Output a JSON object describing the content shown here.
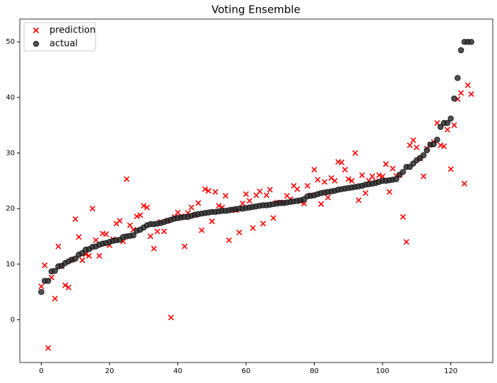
{
  "chart_data": {
    "type": "scatter",
    "title": "Voting Ensemble",
    "x": [
      0,
      1,
      2,
      3,
      4,
      5,
      6,
      7,
      8,
      9,
      10,
      11,
      12,
      13,
      14,
      15,
      16,
      17,
      18,
      19,
      20,
      21,
      22,
      23,
      24,
      25,
      26,
      27,
      28,
      29,
      30,
      31,
      32,
      33,
      34,
      35,
      36,
      37,
      38,
      39,
      40,
      41,
      42,
      43,
      44,
      45,
      46,
      47,
      48,
      49,
      50,
      51,
      52,
      53,
      54,
      55,
      56,
      57,
      58,
      59,
      60,
      61,
      62,
      63,
      64,
      65,
      66,
      67,
      68,
      69,
      70,
      71,
      72,
      73,
      74,
      75,
      76,
      77,
      78,
      79,
      80,
      81,
      82,
      83,
      84,
      85,
      86,
      87,
      88,
      89,
      90,
      91,
      92,
      93,
      94,
      95,
      96,
      97,
      98,
      99,
      100,
      101,
      102,
      103,
      104,
      105,
      106,
      107,
      108,
      109,
      110,
      111,
      112,
      113,
      114,
      115,
      116,
      117,
      118,
      119,
      120,
      121,
      122,
      123,
      124,
      125,
      126
    ],
    "series": [
      {
        "name": "prediction",
        "color": "#ff0000",
        "marker": "x",
        "values": [
          6.0,
          9.8,
          -5.1,
          7.6,
          3.8,
          13.2,
          9.7,
          6.2,
          5.8,
          10.8,
          18.1,
          14.9,
          10.7,
          11.8,
          11.5,
          20.0,
          14.3,
          11.5,
          15.5,
          15.4,
          13.4,
          14.5,
          17.3,
          17.8,
          14.1,
          25.3,
          17.0,
          16.2,
          18.6,
          18.8,
          20.5,
          20.2,
          15.0,
          12.8,
          15.9,
          17.6,
          15.9,
          17.8,
          0.4,
          18.5,
          19.3,
          18.6,
          13.2,
          19.2,
          20.2,
          18.8,
          21.0,
          16.1,
          23.5,
          23.2,
          17.7,
          23.0,
          20.5,
          20.2,
          22.3,
          14.3,
          19.8,
          19.7,
          15.7,
          20.9,
          22.6,
          21.4,
          16.5,
          22.4,
          23.1,
          17.3,
          22.4,
          23.4,
          18.3,
          21.1,
          21.1,
          21.1,
          22.3,
          21.7,
          24.1,
          23.5,
          21.3,
          20.9,
          24.1,
          22.4,
          27.0,
          25.2,
          20.8,
          24.8,
          22.0,
          25.5,
          25.0,
          28.4,
          28.3,
          27.0,
          25.3,
          25.0,
          30.0,
          21.5,
          26.0,
          22.8,
          25.0,
          25.8,
          24.9,
          26.0,
          25.8,
          28.0,
          23.0,
          27.2,
          25.9,
          26.0,
          18.5,
          14.0,
          31.4,
          32.3,
          31.0,
          29.0,
          25.8,
          30.8,
          31.5,
          32.0,
          35.4,
          31.4,
          31.2,
          34.2,
          27.1,
          35.0,
          39.7,
          40.8,
          24.5,
          42.2,
          40.6
        ]
      },
      {
        "name": "actual",
        "color": "#333333",
        "marker": "o",
        "values": [
          5,
          7,
          7,
          8.7,
          8.8,
          9.6,
          9.7,
          10.2,
          10.5,
          10.8,
          11,
          11.7,
          12,
          12.6,
          12.7,
          13.1,
          13.2,
          13.5,
          13.7,
          13.8,
          14,
          14.2,
          14.3,
          14.4,
          14.9,
          15,
          15.1,
          15.2,
          16,
          16.2,
          16.6,
          17,
          17.2,
          17.2,
          17.3,
          17.4,
          17.6,
          17.8,
          18,
          18.2,
          18.3,
          18.4,
          18.5,
          18.5,
          18.7,
          18.9,
          19,
          19.1,
          19.2,
          19.3,
          19.4,
          19.4,
          19.5,
          19.6,
          19.6,
          19.7,
          19.8,
          19.9,
          20,
          20,
          20.1,
          20.2,
          20.3,
          20.4,
          20.5,
          20.6,
          20.6,
          20.7,
          20.8,
          20.9,
          21,
          21,
          21.1,
          21.2,
          21.3,
          21.4,
          21.5,
          21.7,
          22.2,
          22.3,
          22.4,
          22.6,
          22.8,
          22.9,
          23,
          23.1,
          23.2,
          23.4,
          23.5,
          23.6,
          23.7,
          23.8,
          23.9,
          24,
          24.1,
          24.3,
          24.4,
          24.5,
          24.6,
          24.8,
          25,
          25,
          25.1,
          25.2,
          25.3,
          26.1,
          26.6,
          27.5,
          27.5,
          28.1,
          28.7,
          29.1,
          29.6,
          30.5,
          31.5,
          31.6,
          32.4,
          34.7,
          35.4,
          35.4,
          36.2,
          39.8,
          43.5,
          48.5,
          50,
          50,
          50
        ]
      }
    ],
    "xlim": [
      -6.3,
      132.3
    ],
    "ylim": [
      -7.7,
      54.1
    ],
    "xticks": [
      0,
      20,
      40,
      60,
      80,
      100,
      120
    ],
    "yticks": [
      0,
      10,
      20,
      30,
      40,
      50
    ],
    "grid": false,
    "legend": "upper-left"
  }
}
